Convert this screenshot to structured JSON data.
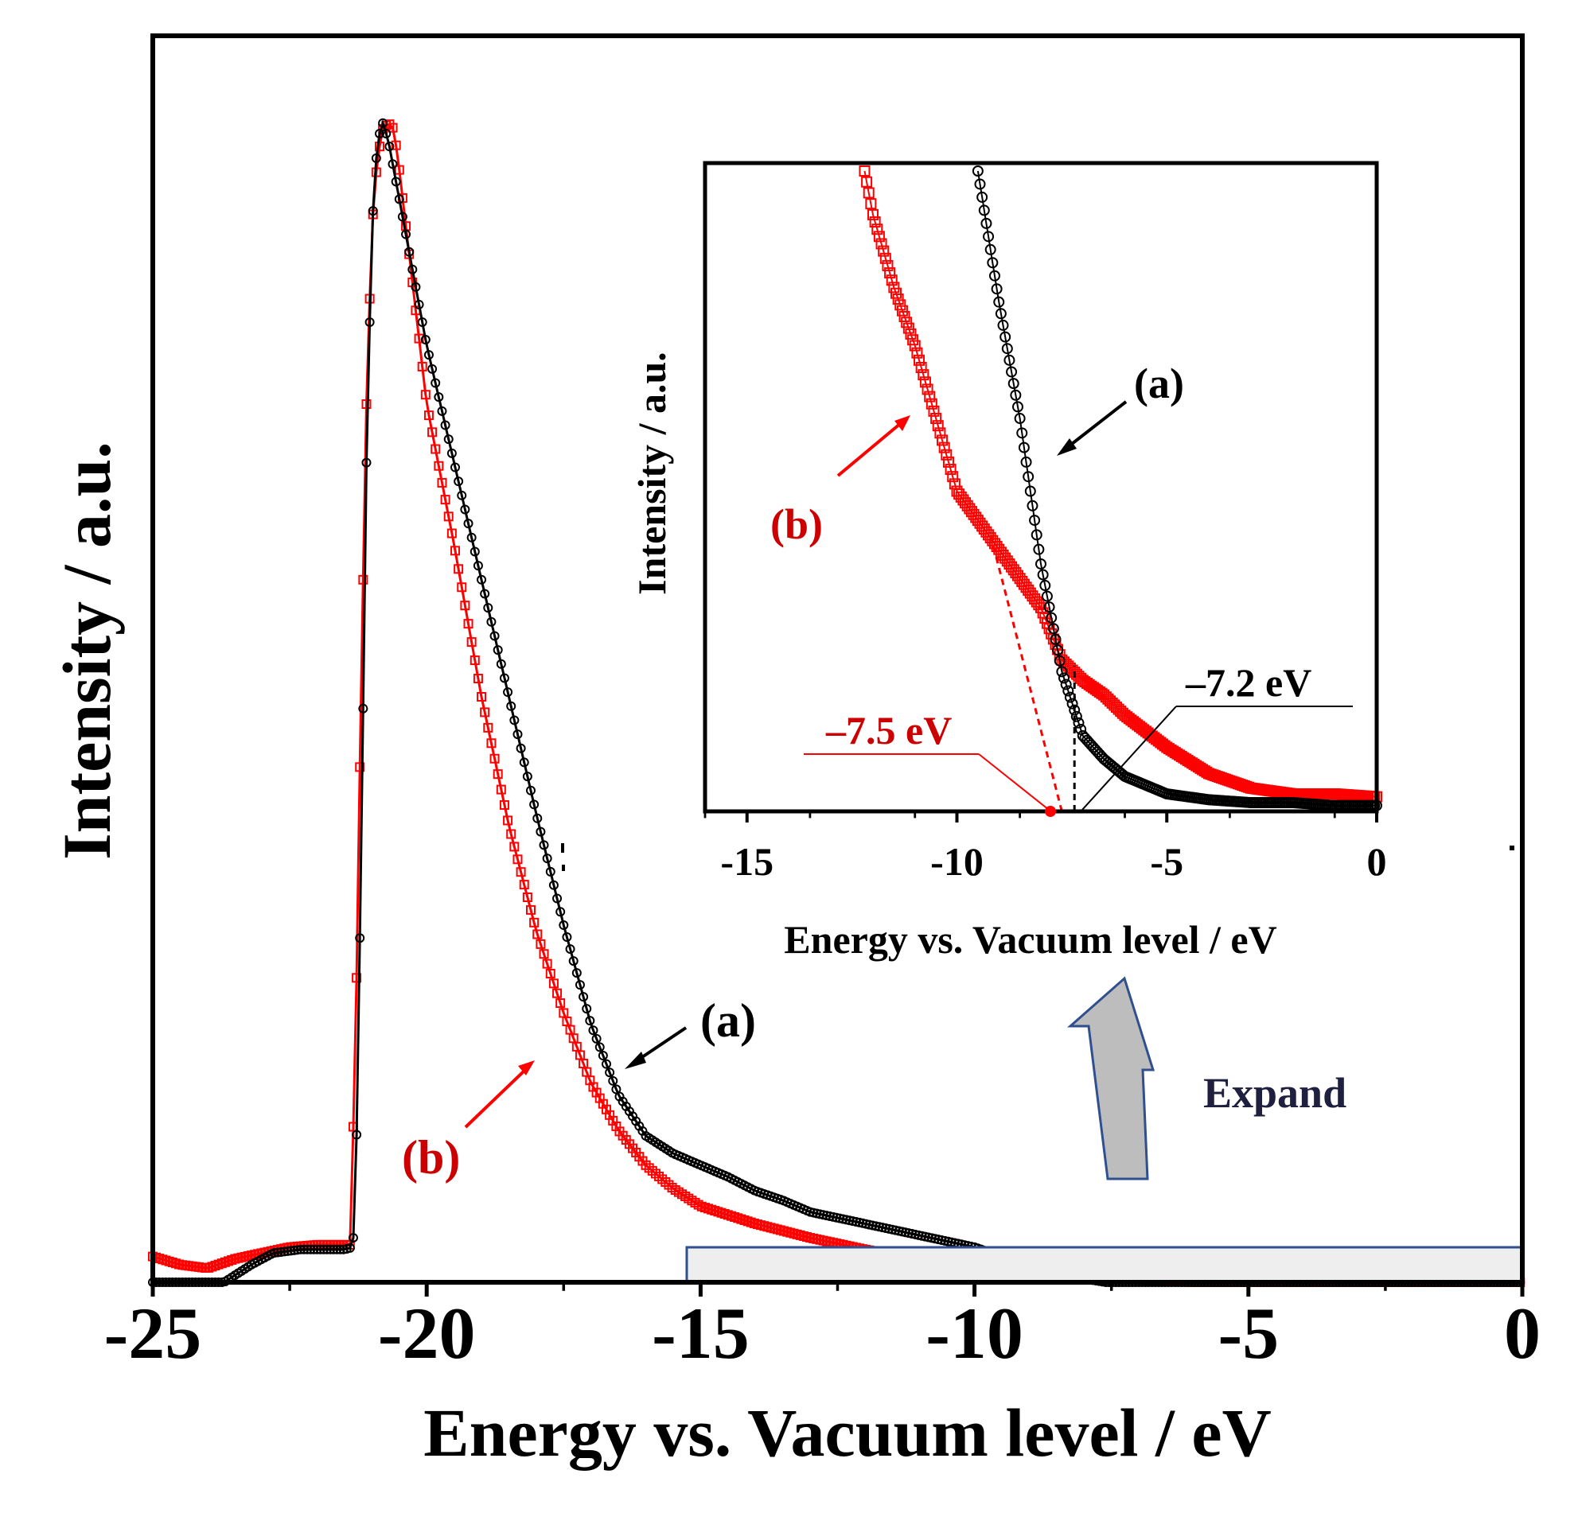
{
  "chart_data": [
    {
      "type": "scatter",
      "title": "",
      "xlabel": "Energy vs. Vacuum level / eV",
      "ylabel": "Intensity / a.u.",
      "xlim": [
        -25,
        0
      ],
      "ylim": [
        0,
        1.0
      ],
      "xticks": [
        -25,
        -20,
        -15,
        -10,
        -5,
        0
      ],
      "xtick_labels": [
        "-25",
        "-20",
        "-15",
        "-10",
        "-5",
        "0"
      ],
      "yticks_shown": false,
      "grid": false,
      "legend": "none",
      "series": [
        {
          "name": "(a)",
          "color": "#000000",
          "marker": "circle",
          "x": [
            -25,
            -24,
            -23.7,
            -23.2,
            -22.8,
            -22.3,
            -21.8,
            -21.5,
            -21.35,
            -21.3,
            -21.2,
            -21.1,
            -21.0,
            -20.9,
            -20.8,
            -20.7,
            -20.5,
            -20.3,
            -20.0,
            -19.5,
            -19.0,
            -18.5,
            -18.0,
            -17.5,
            -17.0,
            -16.5,
            -16.0,
            -15.5,
            -15.0,
            -14.5,
            -14.0,
            -13.5,
            -13.0,
            -12.5,
            -12.0,
            -11.5,
            -11.0,
            -10.5,
            -10.0,
            -9.5,
            -9.0,
            -8.5,
            -8.0,
            -7.6,
            -7.0,
            -6.0,
            -5.0,
            -3.0,
            0.0
          ],
          "y": [
            0.0,
            0.0,
            0.0,
            0.015,
            0.025,
            0.028,
            0.028,
            0.028,
            0.03,
            0.07,
            0.35,
            0.7,
            0.9,
            0.975,
            0.99,
            0.975,
            0.925,
            0.875,
            0.8,
            0.7,
            0.6,
            0.5,
            0.4,
            0.305,
            0.22,
            0.16,
            0.125,
            0.11,
            0.1,
            0.09,
            0.078,
            0.07,
            0.06,
            0.055,
            0.05,
            0.045,
            0.04,
            0.035,
            0.03,
            0.022,
            0.015,
            0.008,
            0.003,
            0.0,
            0.0,
            0.0,
            0.0,
            0.0,
            0.0
          ]
        },
        {
          "name": "(b)",
          "color": "#ff0000",
          "marker": "square",
          "x": [
            -25,
            -24.5,
            -24.0,
            -23.5,
            -23.0,
            -22.5,
            -22.0,
            -21.6,
            -21.4,
            -21.3,
            -21.2,
            -21.1,
            -21.0,
            -20.9,
            -20.8,
            -20.7,
            -20.6,
            -20.5,
            -20.3,
            -20.0,
            -19.5,
            -19.0,
            -18.5,
            -18.0,
            -17.5,
            -17.0,
            -16.5,
            -16.0,
            -15.5,
            -15.0,
            -14.0,
            -13.0,
            -12.0,
            -11.0,
            -10.0,
            -9.0,
            -8.0,
            -7.0,
            -6.0,
            -5.0,
            -3.0,
            0.0
          ],
          "y": [
            0.022,
            0.015,
            0.012,
            0.02,
            0.025,
            0.03,
            0.032,
            0.032,
            0.032,
            0.2,
            0.5,
            0.75,
            0.9,
            0.96,
            0.985,
            0.99,
            0.985,
            0.95,
            0.87,
            0.75,
            0.63,
            0.5,
            0.39,
            0.3,
            0.23,
            0.17,
            0.13,
            0.1,
            0.08,
            0.065,
            0.05,
            0.038,
            0.028,
            0.02,
            0.015,
            0.01,
            0.005,
            0.002,
            0.0,
            0.0,
            0.0,
            0.0
          ]
        }
      ],
      "annotations": [
        {
          "label": "(a)",
          "color": "#000000"
        },
        {
          "label": "(b)",
          "color": "#cc0000"
        },
        {
          "label": "Expand",
          "color": "#1f1f3f"
        }
      ]
    },
    {
      "type": "scatter",
      "title": "",
      "xlabel": "Energy vs. Vacuum level / eV",
      "ylabel": "Intensity / a.u.",
      "xlim": [
        -16,
        0
      ],
      "ylim": [
        0,
        0.22
      ],
      "xticks": [
        -15,
        -10,
        -5,
        0
      ],
      "xtick_labels": [
        "-15",
        "-10",
        "-5",
        "0"
      ],
      "yticks_shown": false,
      "grid": false,
      "legend": "none",
      "series": [
        {
          "name": "(a)",
          "color": "#000000",
          "marker": "circle",
          "x": [
            -9.5,
            -9.0,
            -8.5,
            -8.0,
            -7.5,
            -7.0,
            -6.5,
            -6.0,
            -5.0,
            -4.0,
            -3.0,
            -2.0,
            -1.0,
            0.0
          ],
          "y": [
            0.22,
            0.175,
            0.135,
            0.085,
            0.048,
            0.026,
            0.018,
            0.012,
            0.006,
            0.004,
            0.003,
            0.003,
            0.002,
            0.002
          ],
          "extrapolation_intercept": -7.2
        },
        {
          "name": "(b)",
          "color": "#ff0000",
          "marker": "square",
          "x": [
            -12.2,
            -12.0,
            -11.5,
            -11.0,
            -10.5,
            -10.0,
            -9.5,
            -9.0,
            -8.5,
            -8.0,
            -7.5,
            -7.0,
            -6.5,
            -6.0,
            -5.0,
            -4.0,
            -3.0,
            -2.0,
            -1.0,
            0.0
          ],
          "y": [
            0.22,
            0.205,
            0.18,
            0.16,
            0.135,
            0.11,
            0.1,
            0.09,
            0.08,
            0.07,
            0.052,
            0.045,
            0.04,
            0.033,
            0.022,
            0.013,
            0.008,
            0.006,
            0.006,
            0.005
          ],
          "extrapolation_intercept": -7.5
        }
      ],
      "annotations": [
        {
          "label": "(a)",
          "color": "#000000"
        },
        {
          "label": "(b)",
          "color": "#cc0000"
        },
        {
          "label": "–7.2 eV",
          "color": "#000000"
        },
        {
          "label": "–7.5 eV",
          "color": "#cc0000"
        }
      ]
    }
  ]
}
